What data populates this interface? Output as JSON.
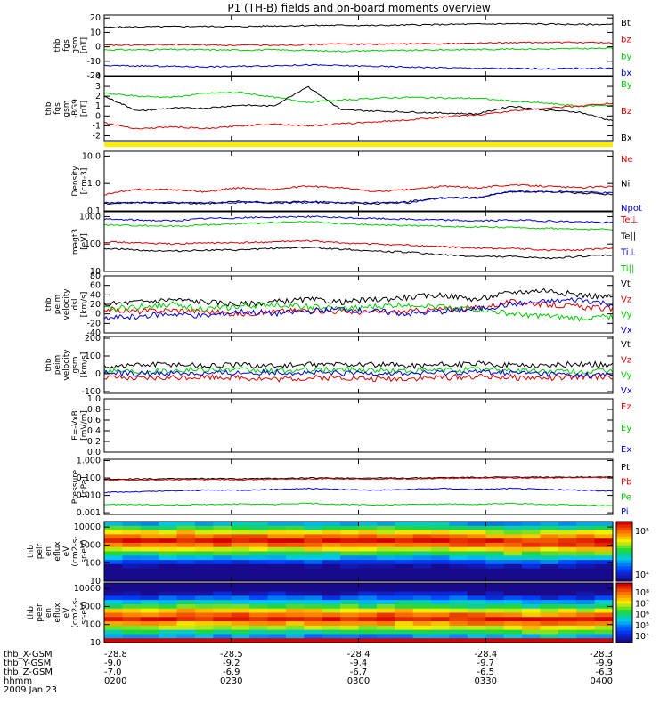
{
  "title": "P1 (TH-B) fields and on-board moments overview",
  "footer": {
    "rows": [
      {
        "label": "thb_X-GSM",
        "values": [
          "-28.8",
          "-28.5",
          "-28.4",
          "-28.4",
          "-28.3"
        ]
      },
      {
        "label": "thb_Y-GSM",
        "values": [
          "-9.0",
          "-9.2",
          "-9.4",
          "-9.7",
          "-9.9"
        ]
      },
      {
        "label": "thb_Z-GSM",
        "values": [
          "-7.0",
          "-6.9",
          "-6.7",
          "-6.5",
          "-6.3"
        ]
      },
      {
        "label": "hhmm",
        "values": [
          "0200",
          "0230",
          "0300",
          "0330",
          "0400"
        ]
      }
    ],
    "date": "2009 Jan 23"
  },
  "chart_data": [
    {
      "type": "line",
      "ylabel_lines": [
        "thb",
        "fgs",
        "gsm",
        "[nT]"
      ],
      "ylim": [
        -20,
        22
      ],
      "yticks": [
        20,
        10,
        0,
        -10,
        -20
      ],
      "series": [
        {
          "name": "Bt",
          "color": "#000000",
          "values": [
            13.5,
            13.8,
            14.0,
            14.2,
            14.0,
            14.5,
            14.8,
            15.0,
            14.8,
            15.2,
            15.5,
            15.8,
            16.0,
            15.8,
            15.5,
            15.6
          ]
        },
        {
          "name": "bz",
          "color": "#dd0000",
          "values": [
            1.0,
            1.2,
            1.5,
            1.3,
            1.0,
            1.2,
            1.5,
            2.0,
            1.8,
            2.0,
            2.2,
            2.5,
            2.8,
            3.0,
            3.0,
            2.8
          ]
        },
        {
          "name": "by",
          "color": "#00cc00",
          "values": [
            -2.0,
            -2.0,
            -1.8,
            -2.0,
            -2.2,
            -2.0,
            -2.5,
            -3.0,
            -2.5,
            -2.5,
            -2.0,
            -1.8,
            -1.5,
            -1.5,
            -1.2,
            -1.0
          ]
        },
        {
          "name": "bx",
          "color": "#0000dd",
          "values": [
            -13.0,
            -13.2,
            -13.5,
            -13.8,
            -13.5,
            -13.0,
            -12.5,
            -13.0,
            -13.5,
            -14.0,
            -14.5,
            -14.8,
            -15.0,
            -15.2,
            -15.0,
            -14.8
          ]
        }
      ]
    },
    {
      "type": "line",
      "ylabel_lines": [
        "thb",
        "fgs",
        "gsm",
        "-BG9",
        "[nT]"
      ],
      "ylim": [
        -2.5,
        4
      ],
      "yticks": [
        4,
        3,
        2,
        1,
        0,
        -1,
        -2
      ],
      "series": [
        {
          "name": "By",
          "color": "#00cc00",
          "values": [
            2.3,
            2.0,
            1.9,
            2.3,
            2.4,
            1.9,
            1.4,
            1.6,
            1.8,
            1.9,
            1.8,
            1.8,
            1.5,
            1.3,
            1.0,
            1.1
          ]
        },
        {
          "name": "Bz",
          "color": "#dd0000",
          "values": [
            -0.7,
            -1.3,
            -1.1,
            -1.3,
            -1.0,
            -0.8,
            -1.0,
            -0.8,
            -0.6,
            -0.4,
            -0.1,
            0.1,
            0.5,
            0.8,
            1.0,
            1.3
          ]
        },
        {
          "name": "Bx",
          "color": "#000000",
          "values": [
            2.0,
            0.5,
            0.8,
            0.8,
            1.1,
            1.0,
            3.0,
            0.6,
            0.5,
            0.4,
            0.3,
            0.2,
            1.0,
            0.6,
            0.4,
            -0.5
          ]
        }
      ]
    },
    {
      "type": "line",
      "ylabel_lines": [
        "Density",
        "[cm-3]"
      ],
      "yscale": "log",
      "ylim": [
        0.1,
        15
      ],
      "ytick_labels": [
        "10.0",
        "1.0",
        "0.1"
      ],
      "series": [
        {
          "name": "Ne",
          "color": "#dd0000",
          "values": [
            0.4,
            0.6,
            0.6,
            0.5,
            0.7,
            0.6,
            0.8,
            0.7,
            0.5,
            0.6,
            0.8,
            0.7,
            0.9,
            0.8,
            0.7,
            0.8
          ]
        },
        {
          "name": "Ni",
          "color": "#000000",
          "values": [
            0.18,
            0.2,
            0.2,
            0.18,
            0.22,
            0.2,
            0.22,
            0.2,
            0.18,
            0.22,
            0.3,
            0.3,
            0.5,
            0.5,
            0.45,
            0.4
          ]
        },
        {
          "name": "Npot",
          "color": "#0000dd",
          "values": [
            0.2,
            0.2,
            0.2,
            0.2,
            0.2,
            0.2,
            0.2,
            0.2,
            0.2,
            0.2,
            0.3,
            0.3,
            0.5,
            0.5,
            0.5,
            0.45
          ]
        }
      ]
    },
    {
      "type": "line",
      "ylabel_lines": [
        "magt3",
        "[eV]"
      ],
      "yscale": "log",
      "ylim": [
        10,
        1500
      ],
      "ytick_labels": [
        "1000",
        "100",
        "10"
      ],
      "series": [
        {
          "name": "Te⊥",
          "color": "#dd0000",
          "values": [
            120,
            110,
            100,
            110,
            110,
            120,
            130,
            110,
            100,
            90,
            80,
            70,
            70,
            60,
            60,
            70
          ]
        },
        {
          "name": "Te||",
          "color": "#000000",
          "values": [
            70,
            60,
            55,
            60,
            60,
            70,
            75,
            65,
            55,
            50,
            40,
            35,
            35,
            30,
            35,
            40
          ]
        },
        {
          "name": "Ti⊥",
          "color": "#0000dd",
          "values": [
            800,
            750,
            700,
            850,
            900,
            950,
            1000,
            900,
            850,
            800,
            750,
            700,
            750,
            700,
            650,
            600
          ]
        },
        {
          "name": "Ti||",
          "color": "#00cc00",
          "values": [
            500,
            480,
            450,
            500,
            550,
            600,
            650,
            550,
            500,
            480,
            450,
            420,
            400,
            380,
            350,
            340
          ]
        }
      ]
    },
    {
      "type": "line",
      "ylabel_lines": [
        "thb",
        "peim",
        "velocity",
        "dsl",
        "[km/s]"
      ],
      "ylim": [
        -40,
        80
      ],
      "yticks": [
        80,
        60,
        40,
        20,
        0,
        -20,
        -40
      ],
      "series": [
        {
          "name": "Vt",
          "color": "#000000",
          "values": [
            20,
            25,
            30,
            25,
            20,
            25,
            30,
            25,
            30,
            35,
            40,
            30,
            45,
            50,
            40,
            35
          ]
        },
        {
          "name": "Vz",
          "color": "#dd0000",
          "values": [
            10,
            5,
            8,
            5,
            0,
            5,
            8,
            5,
            3,
            5,
            10,
            12,
            25,
            20,
            15,
            10
          ]
        },
        {
          "name": "Vy",
          "color": "#00cc00",
          "values": [
            10,
            15,
            20,
            10,
            15,
            20,
            15,
            10,
            15,
            20,
            15,
            10,
            0,
            -5,
            -10,
            -5
          ]
        },
        {
          "name": "Vx",
          "color": "#0000dd",
          "values": [
            -10,
            -5,
            0,
            -5,
            5,
            0,
            5,
            10,
            5,
            0,
            5,
            10,
            20,
            25,
            30,
            20
          ]
        }
      ]
    },
    {
      "type": "line",
      "ylabel_lines": [
        "thb",
        "peim",
        "velocity",
        "gsm",
        "[km/s]"
      ],
      "ylim": [
        -110,
        210
      ],
      "yticks": [
        200,
        100,
        0,
        -100
      ],
      "series": [
        {
          "name": "Vt",
          "color": "#000000",
          "values": [
            40,
            50,
            55,
            45,
            50,
            45,
            50,
            55,
            50,
            45,
            50,
            55,
            50,
            45,
            55,
            50
          ]
        },
        {
          "name": "Vz",
          "color": "#dd0000",
          "values": [
            -20,
            -30,
            -20,
            -15,
            -20,
            -30,
            -25,
            -20,
            -30,
            -25,
            -20,
            -15,
            -20,
            -25,
            -20,
            -15
          ]
        },
        {
          "name": "Vy",
          "color": "#00cc00",
          "values": [
            20,
            15,
            20,
            25,
            20,
            15,
            20,
            25,
            20,
            15,
            20,
            25,
            20,
            15,
            10,
            15
          ]
        },
        {
          "name": "Vx",
          "color": "#0000dd",
          "values": [
            5,
            0,
            5,
            0,
            5,
            10,
            5,
            0,
            5,
            0,
            5,
            10,
            5,
            0,
            -10,
            -5
          ]
        }
      ]
    },
    {
      "type": "line",
      "ylabel_lines": [
        "E=-VxB",
        "[mV/m]"
      ],
      "ylim": [
        0,
        1
      ],
      "ytick_labels": [
        "1.0",
        "0.8",
        "0.6",
        "0.4",
        "0.2",
        "0.0"
      ],
      "series": [
        {
          "name": "Ez",
          "color": "#dd0000",
          "values": []
        },
        {
          "name": "Ey",
          "color": "#00cc00",
          "values": []
        },
        {
          "name": "Ex",
          "color": "#0000dd",
          "values": []
        }
      ]
    },
    {
      "type": "line",
      "ylabel_lines": [
        "Pressure",
        "[nPa]"
      ],
      "yscale": "log",
      "ylim": [
        0.0008,
        1.2
      ],
      "ytick_labels": [
        "1.000",
        "0.100",
        "0.010",
        "0.001"
      ],
      "series": [
        {
          "name": "Pt",
          "color": "#000000",
          "values": [
            0.085,
            0.088,
            0.09,
            0.092,
            0.09,
            0.095,
            0.1,
            0.1,
            0.098,
            0.1,
            0.105,
            0.11,
            0.112,
            0.11,
            0.115,
            0.118
          ]
        },
        {
          "name": "Pb",
          "color": "#dd0000",
          "values": [
            0.075,
            0.078,
            0.08,
            0.082,
            0.08,
            0.085,
            0.09,
            0.09,
            0.088,
            0.09,
            0.095,
            0.1,
            0.102,
            0.1,
            0.105,
            0.108
          ]
        },
        {
          "name": "Pe",
          "color": "#00cc00",
          "values": [
            0.003,
            0.003,
            0.0028,
            0.003,
            0.0032,
            0.003,
            0.0035,
            0.003,
            0.0028,
            0.003,
            0.0032,
            0.003,
            0.0035,
            0.003,
            0.0028,
            0.0025
          ]
        },
        {
          "name": "Pi",
          "color": "#0000dd",
          "values": [
            0.015,
            0.016,
            0.018,
            0.02,
            0.02,
            0.022,
            0.025,
            0.022,
            0.02,
            0.022,
            0.025,
            0.022,
            0.025,
            0.022,
            0.02,
            0.018
          ]
        }
      ]
    },
    {
      "type": "heatmap",
      "ylabel_lines": [
        "thb",
        "peir",
        "en",
        "eflux",
        "eV",
        "(cm2-s-",
        "sr-eV)"
      ],
      "yscale": "log",
      "ylim": [
        10,
        20000
      ],
      "ytick_labels": [
        "10000",
        "1000",
        "100",
        "10"
      ],
      "colorbar_labels": [
        "10⁵",
        "10⁴"
      ],
      "row_energies_eV": [
        12000,
        7000,
        4000,
        2500,
        1500,
        900,
        500,
        300,
        170,
        100,
        60,
        35,
        20,
        12
      ],
      "columns": 28,
      "peak_energy_eV": [
        1500,
        1500,
        1400,
        1500,
        1600,
        1400,
        1500,
        1500,
        1500,
        1500,
        1500,
        1400,
        1500,
        1500,
        1500,
        1500,
        1600,
        1500,
        1500,
        1400,
        1300,
        1300,
        1200,
        1200,
        1200,
        1300,
        1300,
        1300
      ]
    },
    {
      "type": "heatmap",
      "ylabel_lines": [
        "thb",
        "peer",
        "en",
        "eflux",
        "eV",
        "(cm2-s-",
        "sr-eV)"
      ],
      "yscale": "log",
      "ylim": [
        10,
        20000
      ],
      "ytick_labels": [
        "10000",
        "1000",
        "100",
        "10"
      ],
      "colorbar_labels": [
        "10⁸",
        "10⁷",
        "10⁶",
        "10⁵",
        "10⁴"
      ],
      "row_energies_eV": [
        12000,
        7000,
        4000,
        2500,
        1500,
        900,
        500,
        300,
        170,
        100,
        60,
        35,
        20,
        12
      ],
      "columns": 28,
      "peak_energy_eV": [
        200,
        200,
        180,
        200,
        220,
        200,
        210,
        200,
        200,
        200,
        210,
        200,
        190,
        200,
        200,
        200,
        210,
        200,
        200,
        190,
        180,
        170,
        160,
        150,
        150,
        160,
        160,
        170
      ]
    }
  ]
}
